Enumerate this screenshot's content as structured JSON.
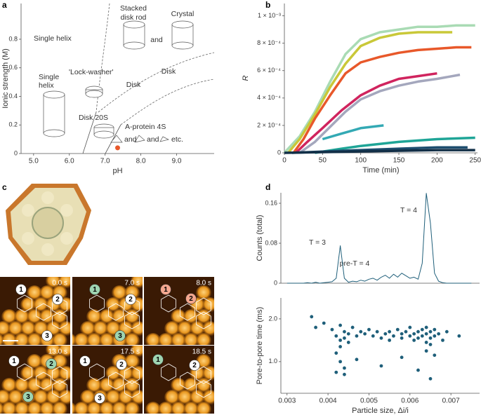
{
  "panel_labels": [
    "a",
    "b",
    "c",
    "d"
  ],
  "chart_data": [
    {
      "type": "phase",
      "xlabel": "pH",
      "ylabel": "Ionic strength (M)",
      "xlim": [
        4.65,
        10.05
      ],
      "ylim": [
        0,
        1.05
      ],
      "xticks": [
        {
          "value": 5,
          "label": "5.0"
        },
        {
          "value": 6,
          "label": "6.0"
        },
        {
          "value": 7,
          "label": "7.0"
        },
        {
          "value": 8,
          "label": "8.0"
        },
        {
          "value": 9,
          "label": "9.0"
        }
      ],
      "yticks": [
        0,
        0.2,
        0.4,
        0.6,
        0.8
      ],
      "annotations": [
        "Single helix",
        "Stacked",
        "disk rod",
        "Crystal",
        "and",
        "Single",
        "helix",
        "'Lock-washer'",
        "Disk",
        "Disk",
        "Disk 20S",
        "A-protein 4S",
        "and",
        "and",
        "etc."
      ],
      "points": {
        "x": [
          7.35
        ],
        "y": [
          0.04
        ]
      },
      "point_color": "#e8582a"
    },
    {
      "type": "line",
      "xlabel": "Time (min)",
      "ylabel": "R",
      "xlim": [
        0,
        253
      ],
      "ylim": [
        0,
        0.00109
      ],
      "xticks": [
        0,
        50,
        100,
        150,
        200,
        250
      ],
      "yticks": [
        0,
        {
          "value": 0.0002,
          "label": "2 × 10⁻⁴"
        },
        {
          "value": 0.0004,
          "label": "4 × 10⁻⁴"
        },
        {
          "value": 0.0006,
          "label": "6 × 10⁻⁴"
        },
        {
          "value": 0.0008,
          "label": "8 × 10⁻⁴"
        },
        {
          "value": 0.001,
          "label": "1 × 10⁻³"
        }
      ],
      "series": [
        {
          "color": "#a9dbb4",
          "x": [
            0,
            20,
            40,
            60,
            80,
            100,
            125,
            150,
            175,
            200,
            225,
            250
          ],
          "values": [
            0,
            0.00012,
            0.0003,
            0.00052,
            0.00072,
            0.00083,
            0.00088,
            0.0009,
            0.00092,
            0.00092,
            0.00093,
            0.00093
          ]
        },
        {
          "color": "#c9c838",
          "x": [
            5,
            20,
            40,
            60,
            80,
            100,
            125,
            150,
            175,
            200,
            220
          ],
          "values": [
            0,
            0.0001,
            0.00028,
            0.00048,
            0.00065,
            0.00078,
            0.00084,
            0.00087,
            0.00088,
            0.00088,
            0.00088
          ]
        },
        {
          "color": "#e8582a",
          "x": [
            12,
            25,
            40,
            60,
            80,
            100,
            125,
            150,
            175,
            200,
            225,
            245
          ],
          "values": [
            0,
            0.0001,
            0.00025,
            0.00042,
            0.00058,
            0.00066,
            0.0007,
            0.00073,
            0.00075,
            0.00076,
            0.00077,
            0.00077
          ]
        },
        {
          "color": "#d0245e",
          "x": [
            15,
            30,
            50,
            75,
            100,
            125,
            150,
            175,
            200
          ],
          "values": [
            0,
            8e-05,
            0.00018,
            0.00031,
            0.00042,
            0.00049,
            0.00054,
            0.00056,
            0.00058
          ]
        },
        {
          "color": "#a4a7bd",
          "x": [
            20,
            40,
            60,
            80,
            100,
            125,
            150,
            175,
            200,
            230
          ],
          "values": [
            0,
            8e-05,
            0.00019,
            0.0003,
            0.00039,
            0.00045,
            0.00049,
            0.00052,
            0.00054,
            0.00057
          ]
        },
        {
          "color": "#33a9b4",
          "x": [
            50,
            75,
            100,
            130
          ],
          "values": [
            0.0001,
            0.00014,
            0.00018,
            0.0002
          ]
        },
        {
          "color": "#1fa597",
          "x": [
            40,
            75,
            100,
            150,
            200,
            250
          ],
          "values": [
            0,
            3e-05,
            5e-05,
            8e-05,
            0.0001,
            0.00011
          ]
        },
        {
          "color": "#1d4d6e",
          "x": [
            10,
            100,
            150,
            200,
            240
          ],
          "values": [
            0,
            2e-05,
            3e-05,
            4e-05,
            4e-05
          ]
        },
        {
          "color": "#122f47",
          "x": [
            0,
            100,
            200,
            250
          ],
          "values": [
            0,
            1e-05,
            2e-05,
            2e-05
          ]
        }
      ]
    },
    {
      "type": "line",
      "ylabel": "Counts (total)",
      "color": "#1f5f7a",
      "xlim": [
        0.00285,
        0.0077
      ],
      "ylim": [
        0,
        0.181
      ],
      "yticks": [
        0,
        0.08,
        0.16
      ],
      "annotations": [
        "T = 3",
        "pre-T = 4",
        "T = 4"
      ],
      "x": [
        0.003,
        0.0031,
        0.0032,
        0.0033,
        0.0034,
        0.0035,
        0.0036,
        0.0037,
        0.0038,
        0.0039,
        0.004,
        0.0041,
        0.0042,
        0.0043,
        0.0044,
        0.0045,
        0.0046,
        0.0047,
        0.0048,
        0.0049,
        0.005,
        0.0051,
        0.0052,
        0.0053,
        0.0054,
        0.0055,
        0.0056,
        0.0057,
        0.0058,
        0.0059,
        0.006,
        0.0061,
        0.0062,
        0.0063,
        0.0064,
        0.0065,
        0.0066,
        0.0067,
        0.0068,
        0.0069,
        0.007,
        0.0071,
        0.0072,
        0.0073,
        0.0074,
        0.0075
      ],
      "values": [
        0,
        0,
        0,
        0,
        0,
        0.001,
        0,
        0.002,
        0,
        0.001,
        0.002,
        0.003,
        0.01,
        0.075,
        0.01,
        0.002,
        0.004,
        0.003,
        0.006,
        0.004,
        0.008,
        0.01,
        0.006,
        0.012,
        0.016,
        0.01,
        0.018,
        0.012,
        0.02,
        0.015,
        0.01,
        0.012,
        0.008,
        0.04,
        0.18,
        0.12,
        0.02,
        0.004,
        0.001,
        0,
        0,
        0,
        0,
        0,
        0,
        0
      ]
    },
    {
      "type": "scatter",
      "xlabel": "Particle size, Δi/i",
      "ylabel": "Pore-to-pore time (ms)",
      "color": "#1f5f7a",
      "xlim": [
        0.00285,
        0.0077
      ],
      "ylim": [
        0.26,
        2.49
      ],
      "xticks": [
        0.003,
        0.004,
        0.005,
        0.006,
        0.007
      ],
      "yticks": [
        {
          "value": 1,
          "label": "1.0"
        },
        {
          "value": 2,
          "label": "2.0"
        }
      ],
      "x": [
        0.0036,
        0.0037,
        0.0039,
        0.0041,
        0.0042,
        0.0042,
        0.0043,
        0.0043,
        0.0043,
        0.0044,
        0.0044,
        0.0044,
        0.0045,
        0.0045,
        0.0046,
        0.0047,
        0.0048,
        0.0049,
        0.005,
        0.0051,
        0.0052,
        0.0053,
        0.0054,
        0.0055,
        0.0055,
        0.0056,
        0.0057,
        0.0058,
        0.0058,
        0.0059,
        0.006,
        0.006,
        0.0061,
        0.0061,
        0.0062,
        0.0062,
        0.0063,
        0.0063,
        0.0064,
        0.0064,
        0.0064,
        0.0065,
        0.0065,
        0.0065,
        0.0066,
        0.0066,
        0.0067,
        0.0068,
        0.0069,
        0.0072,
        0.0043,
        0.0044,
        0.0058,
        0.0062,
        0.0065,
        0.0047,
        0.0053,
        0.0064,
        0.0042,
        0.0066
      ],
      "values": [
        2.05,
        1.8,
        1.9,
        1.75,
        1.6,
        1.2,
        1.5,
        1.35,
        1.85,
        1.55,
        0.7,
        1.7,
        1.45,
        1.65,
        1.8,
        1.6,
        1.7,
        1.65,
        1.75,
        1.6,
        1.7,
        1.55,
        1.65,
        1.7,
        1.5,
        1.6,
        1.75,
        1.55,
        1.65,
        1.7,
        1.6,
        1.8,
        1.5,
        1.65,
        1.7,
        1.55,
        1.6,
        1.75,
        1.45,
        1.65,
        1.8,
        1.55,
        1.7,
        1.4,
        1.6,
        1.75,
        1.65,
        1.5,
        1.7,
        1.6,
        1.0,
        0.85,
        1.1,
        0.8,
        0.6,
        1.05,
        0.9,
        1.25,
        0.75,
        1.15
      ]
    }
  ],
  "micrographs": {
    "frames": [
      {
        "time": "0.0 s",
        "labels": [
          "1",
          "2",
          "3"
        ]
      },
      {
        "time": "7.0 s",
        "labels": [
          "1",
          "2",
          "3"
        ]
      },
      {
        "time": "8.0 s",
        "labels": [
          "1",
          "2"
        ]
      },
      {
        "time": "13.0 s",
        "labels": [
          "1",
          "2",
          "3"
        ]
      },
      {
        "time": "17.5 s",
        "labels": [
          "1",
          "2",
          "3"
        ]
      },
      {
        "time": "18.5 s",
        "labels": [
          "1",
          "2"
        ]
      }
    ]
  }
}
